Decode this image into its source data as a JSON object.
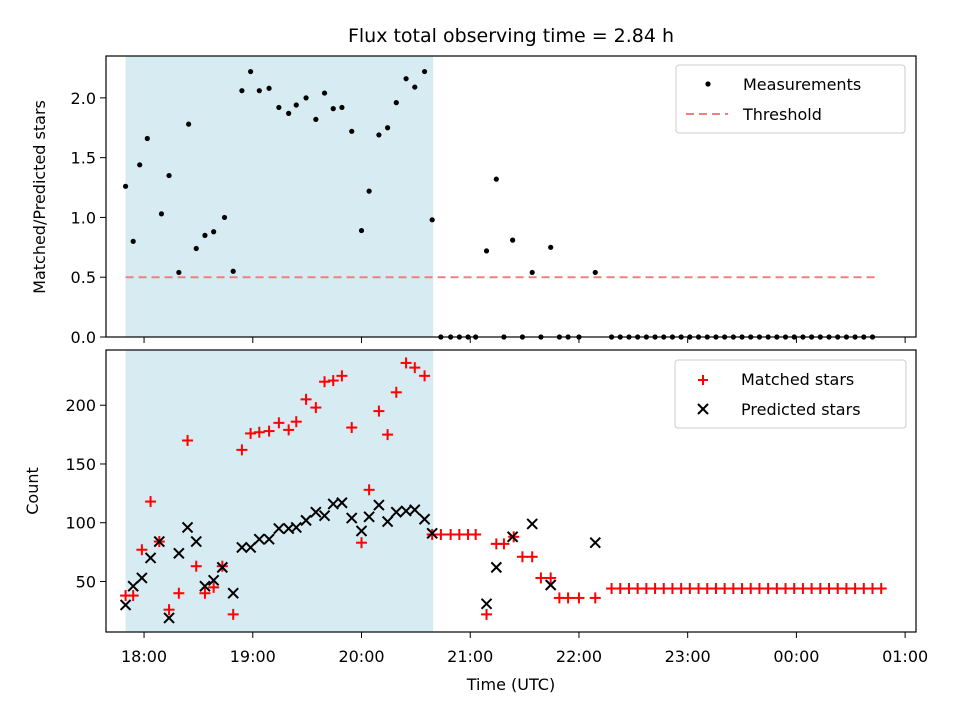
{
  "colors": {
    "shade": "#add8e6",
    "threshold": "#f08080",
    "matched": "#ff0000",
    "predicted": "#000000",
    "measurement": "#000000"
  },
  "chart_data": [
    {
      "type": "scatter",
      "title": "Flux total observing time = 2.84 h",
      "xlabel": "",
      "ylabel": "Matched/Predicted stars",
      "xlim": [
        17.65,
        25.1
      ],
      "ylim": [
        0,
        2.35
      ],
      "xticks": [
        18,
        19,
        20,
        21,
        22,
        23,
        24,
        25
      ],
      "yticks": [
        0.0,
        0.5,
        1.0,
        1.5,
        2.0
      ],
      "ytick_labels": [
        "0.0",
        "0.5",
        "1.0",
        "1.5",
        "2.0"
      ],
      "shaded_span": [
        17.83,
        20.66
      ],
      "legend": [
        "Measurements",
        "Threshold"
      ],
      "legend_position": "top-right",
      "threshold": {
        "name": "Threshold",
        "y": 0.5,
        "x": [
          17.83,
          24.75
        ]
      },
      "series": [
        {
          "name": "Measurements",
          "x": [
            17.83,
            17.9,
            17.96,
            18.03,
            18.16,
            18.23,
            18.32,
            18.41,
            18.48,
            18.56,
            18.64,
            18.74,
            18.82,
            18.9,
            18.98,
            19.06,
            19.15,
            19.24,
            19.33,
            19.4,
            19.49,
            19.58,
            19.66,
            19.74,
            19.82,
            19.91,
            20.0,
            20.07,
            20.16,
            20.24,
            20.32,
            20.41,
            20.49,
            20.58,
            20.65,
            20.73,
            20.82,
            20.9,
            20.98,
            21.05,
            21.15,
            21.24,
            21.31,
            21.39,
            21.48,
            21.57,
            21.65,
            21.74,
            21.82,
            21.9,
            22.0,
            22.15,
            22.3,
            22.38,
            22.46,
            22.54,
            22.62,
            22.7,
            22.78,
            22.86,
            22.94,
            23.02,
            23.1,
            23.18,
            23.26,
            23.34,
            23.42,
            23.5,
            23.58,
            23.66,
            23.74,
            23.82,
            23.9,
            23.98,
            24.06,
            24.14,
            24.22,
            24.3,
            24.38,
            24.46,
            24.54,
            24.62,
            24.7
          ],
          "y": [
            1.26,
            0.8,
            1.44,
            1.66,
            1.03,
            1.35,
            0.54,
            1.78,
            0.74,
            0.85,
            0.88,
            1.0,
            0.55,
            2.06,
            2.22,
            2.06,
            2.08,
            1.92,
            1.87,
            1.94,
            2.0,
            1.82,
            2.04,
            1.91,
            1.92,
            1.72,
            0.89,
            1.22,
            1.69,
            1.75,
            1.96,
            2.16,
            2.09,
            2.22,
            0.98,
            0.0,
            0.0,
            0.0,
            0.0,
            0.0,
            0.72,
            1.32,
            0.0,
            0.81,
            0.0,
            0.54,
            0.0,
            0.75,
            0.0,
            0.0,
            0.0,
            0.54,
            0.0,
            0.0,
            0.0,
            0.0,
            0.0,
            0.0,
            0.0,
            0.0,
            0.0,
            0.0,
            0.0,
            0.0,
            0.0,
            0.0,
            0.0,
            0.0,
            0.0,
            0.0,
            0.0,
            0.0,
            0.0,
            0.0,
            0.0,
            0.0,
            0.0,
            0.0,
            0.0,
            0.0,
            0.0,
            0.0,
            0.0
          ]
        }
      ]
    },
    {
      "type": "scatter",
      "title": "",
      "xlabel": "Time (UTC)",
      "ylabel": "Count",
      "xlim": [
        17.65,
        25.1
      ],
      "ylim": [
        7,
        247
      ],
      "xticks": [
        18,
        19,
        20,
        21,
        22,
        23,
        24,
        25
      ],
      "xtick_labels": [
        "18:00",
        "19:00",
        "20:00",
        "21:00",
        "22:00",
        "23:00",
        "00:00",
        "01:00"
      ],
      "yticks": [
        50,
        100,
        150,
        200
      ],
      "ytick_labels": [
        "50",
        "100",
        "150",
        "200"
      ],
      "shaded_span": [
        17.83,
        20.66
      ],
      "legend": [
        "Matched stars",
        "Predicted stars"
      ],
      "legend_position": "top-right",
      "series": [
        {
          "name": "Matched stars",
          "marker": "+",
          "x": [
            17.83,
            17.9,
            17.98,
            18.06,
            18.14,
            18.23,
            18.32,
            18.4,
            18.48,
            18.56,
            18.64,
            18.72,
            18.82,
            18.9,
            18.98,
            19.06,
            19.15,
            19.24,
            19.33,
            19.4,
            19.49,
            19.58,
            19.66,
            19.74,
            19.82,
            19.91,
            20.0,
            20.07,
            20.16,
            20.24,
            20.32,
            20.41,
            20.49,
            20.58,
            20.65,
            20.73,
            20.82,
            20.9,
            20.98,
            21.05,
            21.15,
            21.24,
            21.31,
            21.4,
            21.48,
            21.57,
            21.65,
            21.74,
            21.82,
            21.9,
            22.0,
            22.15,
            22.3,
            22.38,
            22.46,
            22.54,
            22.62,
            22.7,
            22.78,
            22.86,
            22.94,
            23.02,
            23.1,
            23.18,
            23.26,
            23.34,
            23.42,
            23.5,
            23.58,
            23.66,
            23.74,
            23.82,
            23.9,
            23.98,
            24.06,
            24.14,
            24.22,
            24.3,
            24.38,
            24.46,
            24.54,
            24.62,
            24.7,
            24.78
          ],
          "y": [
            38,
            38,
            77,
            118,
            84,
            26,
            40,
            170,
            63,
            40,
            45,
            63,
            22,
            162,
            176,
            177,
            178,
            185,
            179,
            186,
            205,
            198,
            220,
            221,
            225,
            181,
            83,
            128,
            195,
            175,
            211,
            236,
            232,
            225,
            90,
            90,
            90,
            90,
            90,
            90,
            22,
            82,
            82,
            88,
            71,
            71,
            53,
            53,
            36,
            36,
            36,
            36,
            44,
            44,
            44,
            44,
            44,
            44,
            44,
            44,
            44,
            44,
            44,
            44,
            44,
            44,
            44,
            44,
            44,
            44,
            44,
            44,
            44,
            44,
            44,
            44,
            44,
            44,
            44,
            44,
            44,
            44,
            44,
            44
          ]
        },
        {
          "name": "Predicted stars",
          "marker": "x",
          "x": [
            17.83,
            17.9,
            17.98,
            18.06,
            18.14,
            18.23,
            18.32,
            18.4,
            18.48,
            18.56,
            18.64,
            18.72,
            18.82,
            18.9,
            18.98,
            19.06,
            19.15,
            19.24,
            19.33,
            19.4,
            19.49,
            19.58,
            19.66,
            19.74,
            19.82,
            19.91,
            20.0,
            20.07,
            20.16,
            20.24,
            20.32,
            20.41,
            20.49,
            20.58,
            20.65,
            21.15,
            21.24,
            21.39,
            21.57,
            21.74,
            22.15
          ],
          "y": [
            30,
            46,
            53,
            70,
            84,
            19,
            74,
            96,
            84,
            46,
            51,
            62,
            40,
            79,
            79,
            86,
            86,
            95,
            95,
            96,
            102,
            109,
            106,
            116,
            117,
            104,
            93,
            105,
            115,
            101,
            109,
            110,
            111,
            103,
            91,
            31,
            62,
            88,
            99,
            47,
            83
          ]
        }
      ]
    }
  ]
}
